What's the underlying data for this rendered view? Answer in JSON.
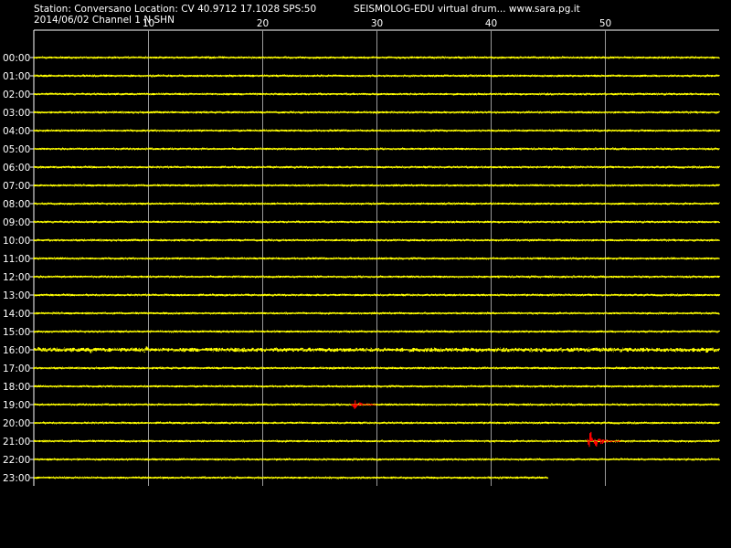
{
  "header": {
    "station_line": "Station: Conversano Location: CV 40.9712 17.1028 SPS:50",
    "brand_line": "SEISMOLOG-EDU virtual drum... www.sara.pg.it",
    "date_channel_line": "2014/06/02  Channel 1 N SHN"
  },
  "colors": {
    "background": "#000000",
    "trace": "#ffff00",
    "event": "#ff0000",
    "grid": "#9a9a9a",
    "axis": "#ffffff",
    "text": "#ffffff"
  },
  "chart_data": {
    "type": "line",
    "title": "",
    "xlabel": "",
    "ylabel": "",
    "xlim": [
      0,
      60
    ],
    "x_ticks": [
      10,
      20,
      30,
      40,
      50
    ],
    "grid_x": true,
    "rows": [
      "00:00",
      "01:00",
      "02:00",
      "03:00",
      "04:00",
      "05:00",
      "06:00",
      "07:00",
      "08:00",
      "09:00",
      "10:00",
      "11:00",
      "12:00",
      "13:00",
      "14:00",
      "15:00",
      "16:00",
      "17:00",
      "18:00",
      "19:00",
      "20:00",
      "21:00",
      "22:00",
      "23:00"
    ],
    "last_row_end_minute": 45,
    "background_noise_level": 1.2,
    "noisy_rows": [
      {
        "row": "16:00",
        "level": 2.2,
        "bursts": [
          {
            "minute": 0.4,
            "amplitude": 3
          },
          {
            "minute": 5.0,
            "amplitude": 4
          },
          {
            "minute": 9.8,
            "amplitude": 4
          },
          {
            "minute": 18.3,
            "amplitude": 3
          },
          {
            "minute": 58.9,
            "amplitude": 4
          }
        ]
      }
    ],
    "events": [
      {
        "row": "19:00",
        "start_minute": 27.8,
        "end_minute": 30.0,
        "peak_amplitude": 6
      },
      {
        "row": "21:00",
        "start_minute": 48.4,
        "end_minute": 51.4,
        "peak_amplitude": 12
      }
    ]
  }
}
